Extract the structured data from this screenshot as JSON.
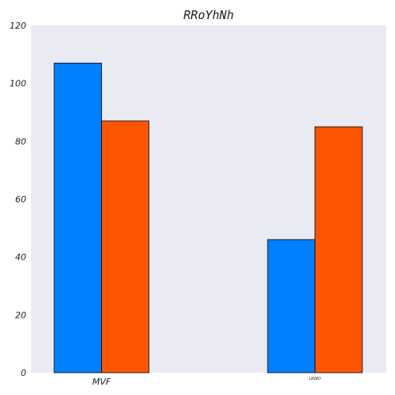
{
  "chart_data": {
    "type": "bar",
    "title": "RRoYhNh",
    "xlabel": "",
    "ylabel": "",
    "categories": [
      "MVF",
      "LKWD"
    ],
    "series": [
      {
        "values": [
          107,
          46
        ],
        "color": "#0080ff"
      },
      {
        "values": [
          87,
          85
        ],
        "color": "#ff5500"
      }
    ],
    "ylim": [
      0,
      120
    ],
    "yticks": [
      0,
      20,
      40,
      60,
      80,
      100,
      120
    ],
    "grid": false,
    "legend": "none",
    "background": "#eaeaf2"
  }
}
